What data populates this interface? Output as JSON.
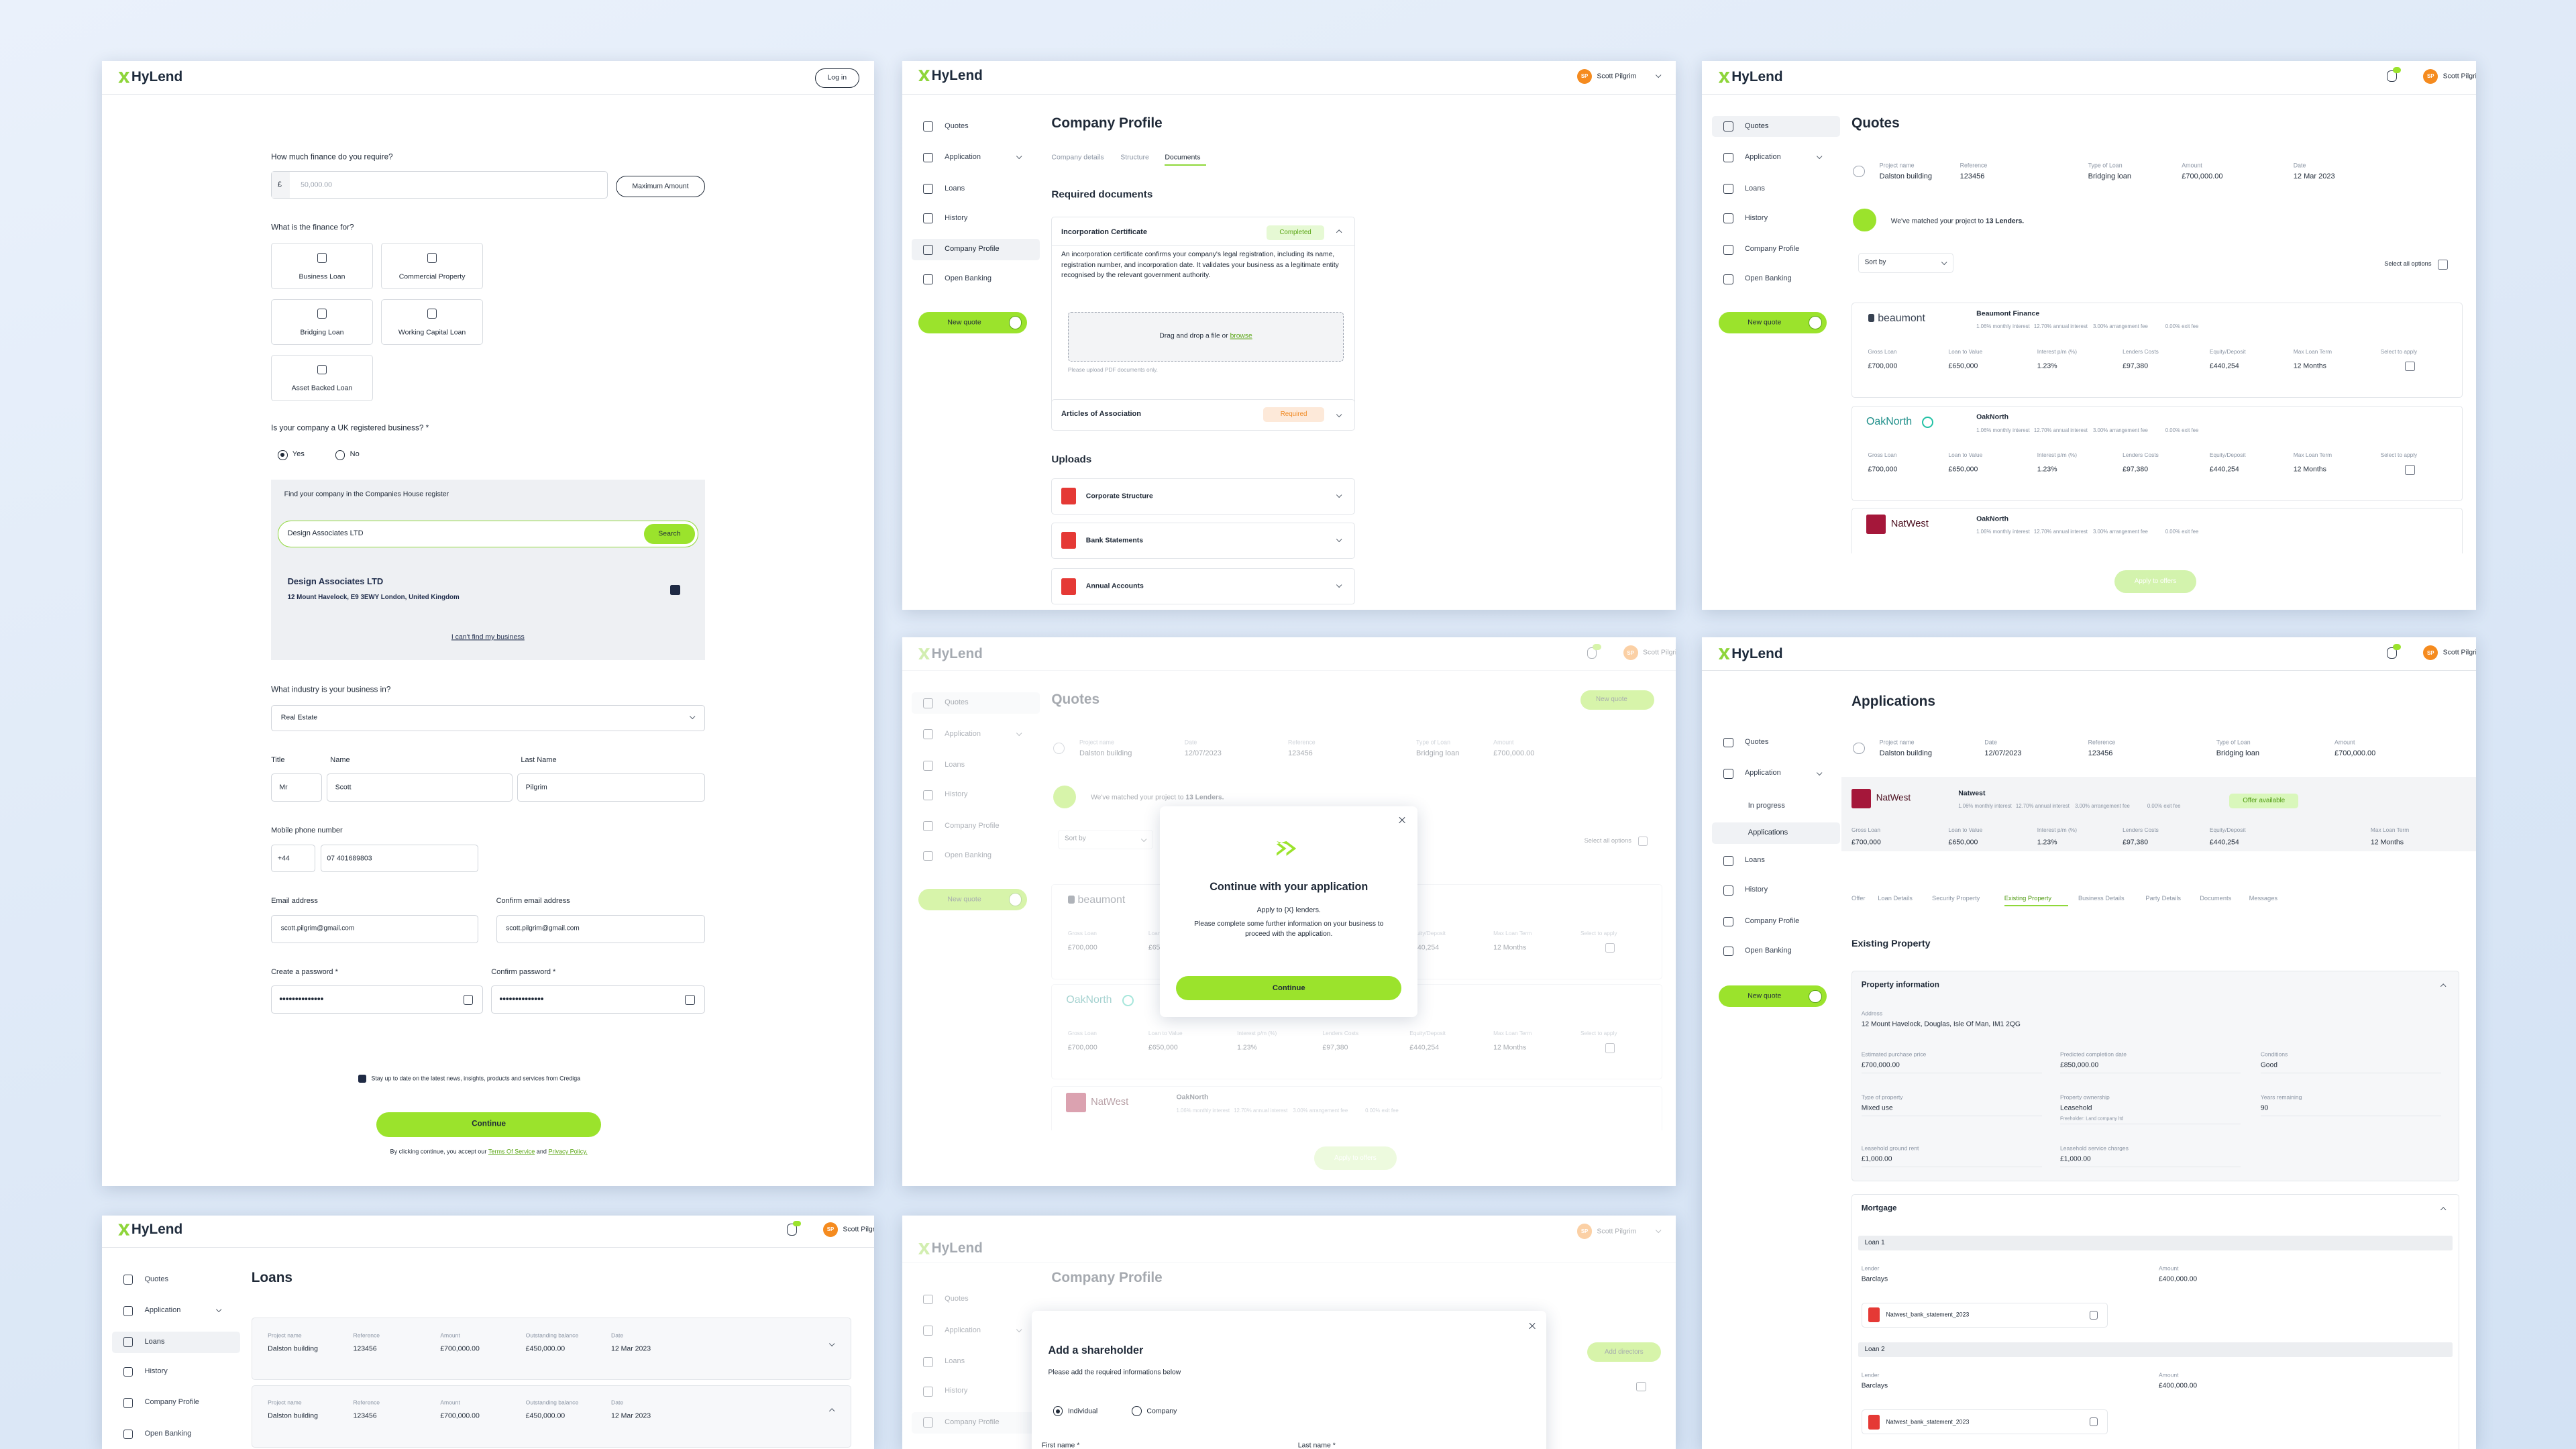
{
  "brand": "HyLend",
  "user": "Scott Pilgrim",
  "user_initials": "SP",
  "new_quote": "New quote",
  "nav": [
    "Quotes",
    "Application",
    "Loans",
    "History",
    "Company Profile",
    "Open Banking"
  ],
  "nav_sub": [
    "In progress",
    "Applications"
  ],
  "finance_form": {
    "login": "Log in",
    "amount_question": "How much finance do you require?",
    "currency": "£",
    "amount_placeholder": "50,000.00",
    "max_amount": "Maximum Amount",
    "purpose_question": "What is the finance for?",
    "purposes": [
      "Business Loan",
      "Commercial Property",
      "Bridging Loan",
      "Working Capital Loan",
      "Asset Backed Loan"
    ],
    "uk_question": "Is your company a UK registered business? *",
    "yes": "Yes",
    "no": "No",
    "register_label": "Find your company in the Companies House register",
    "search_value": "Design Associates LTD",
    "search": "Search",
    "result_name": "Design Associates LTD",
    "result_address": "12 Mount Havelock, E9 3EWY London, United Kingdom",
    "cant_find": "I can't find my business",
    "industry_question": "What industry is your business in?",
    "industry": "Real Estate",
    "title_label": "Title",
    "title": "Mr",
    "name_label": "Name",
    "name": "Scott",
    "last_name_label": "Last Name",
    "last_name": "Pilgrim",
    "phone_label": "Mobile phone number",
    "phone_code": "+44",
    "phone": "07 401689803",
    "email_label": "Email address",
    "email": "scott.pilgrim@gmail.com",
    "confirm_email_label": "Confirm email address",
    "confirm_email": "scott.pilgrim@gmail.com",
    "password_label": "Create a password *",
    "confirm_password_label": "Confirm password *",
    "password": "••••••••••••••",
    "newsletter": "Stay up to date on the latest news, insights, products and services from Crediga",
    "continue": "Continue",
    "terms_prefix": "By clicking continue, you accept our",
    "terms": "Terms Of Service",
    "and": "and",
    "privacy": "Privacy Policy."
  },
  "company_profile": {
    "title": "Company Profile",
    "tabs": [
      "Company details",
      "Structure",
      "Documents"
    ],
    "required_documents": "Required documents",
    "documents": [
      {
        "name": "Incorporation Certificate",
        "status": "Completed",
        "description": "An incorporation certificate confirms your company's legal registration, including its name, registration number, and incorporation date. It validates your business as a legitimate entity recognised by the relevant government authority.",
        "upload": "Drag and drop a file or",
        "browse": "browse",
        "hint": "Please upload PDF documents only."
      },
      {
        "name": "Articles of Association",
        "status": "Required"
      }
    ],
    "uploads_title": "Uploads",
    "uploads": [
      "Corporate Structure",
      "Bank Statements",
      "Annual Accounts"
    ]
  },
  "quotes": {
    "title": "Quotes",
    "project_fields": [
      {
        "label": "Project name",
        "value": "Dalston building"
      },
      {
        "label": "Reference",
        "value": "123456"
      },
      {
        "label": "Type of Loan",
        "value": "Bridging loan"
      },
      {
        "label": "Amount",
        "value": "£700,000.00"
      },
      {
        "label": "Date",
        "value": "12 Mar 2023"
      }
    ],
    "matched_prefix": "We've matched your project to",
    "matched_count": "13 Lenders.",
    "sort": "Sort by",
    "select_all": "Select all options",
    "field_labels": [
      "Gross Loan",
      "Loan to Value",
      "Interest p/m (%)",
      "Lenders Costs",
      "Equity/Deposit",
      "Max Loan Term",
      "Select to apply"
    ],
    "lenders": [
      {
        "logo": "beaumont",
        "name": "Beaumont Finance",
        "terms": [
          "1.06% monthly interest",
          "12.70% annual interest",
          "3.00% arrangement fee",
          "0.00% exit fee"
        ],
        "values": [
          "£700,000",
          "£650,000",
          "1.23%",
          "£97,380",
          "£440,254",
          "12 Months"
        ]
      },
      {
        "logo": "OakNorth",
        "name": "OakNorth",
        "terms": [
          "1.06% monthly interest",
          "12.70% annual interest",
          "3.00% arrangement fee",
          "0.00% exit fee"
        ],
        "values": [
          "£700,000",
          "£650,000",
          "1.23%",
          "£97,380",
          "£440,254",
          "12 Months"
        ]
      },
      {
        "logo": "NatWest",
        "name": "OakNorth",
        "terms": [
          "1.06% monthly interest",
          "12.70% annual interest",
          "3.00% arrangement fee",
          "0.00% exit fee"
        ]
      }
    ],
    "apply": "Apply to offers"
  },
  "continue_modal": {
    "title": "Continue with your application",
    "subtitle": "Apply to {X} lenders.",
    "body": "Please complete some further information on your business to proceed with the application.",
    "button": "Continue"
  },
  "applications": {
    "title": "Applications",
    "project_fields": [
      {
        "label": "Project name",
        "value": "Dalston building"
      },
      {
        "label": "Date",
        "value": "12/07/2023"
      },
      {
        "label": "Reference",
        "value": "123456"
      },
      {
        "label": "Type of Loan",
        "value": "Bridging loan"
      },
      {
        "label": "Amount",
        "value": "£700,000.00"
      }
    ],
    "lender": {
      "logo": "NatWest",
      "name": "Natwest",
      "terms": [
        "1.06% monthly interest",
        "12.70% annual interest",
        "3.00% arrangement fee",
        "0.00% exit fee"
      ],
      "status": "Offer available",
      "values": [
        "£700,000",
        "£650,000",
        "1.23%",
        "£97,380",
        "£440,254",
        "12 Months"
      ]
    },
    "tabs": [
      "Offer",
      "Loan Details",
      "Security Property",
      "Existing Property",
      "Business Details",
      "Party Details",
      "Documents",
      "Messages"
    ],
    "section": "Existing Property",
    "property_title": "Property information",
    "address_label": "Address",
    "address": "12 Mount Havelock, Douglas, Isle Of Man, IM1 2QG",
    "fields": [
      {
        "label": "Estimated purchase price",
        "value": "£700,000.00"
      },
      {
        "label": "Predicted completion date",
        "value": "£850,000.00"
      },
      {
        "label": "Conditions",
        "value": "Good"
      },
      {
        "label": "Type of property",
        "value": "Mixed use"
      },
      {
        "label": "Property ownership",
        "value": "Leasehold",
        "note": "Freeholder: Land company ltd"
      },
      {
        "label": "Years remaining",
        "value": "90"
      },
      {
        "label": "Leasehold ground rent",
        "value": "£1,000.00"
      },
      {
        "label": "Leasehold service charges",
        "value": "£1,000.00"
      }
    ],
    "mortgage_title": "Mortgage",
    "loans": [
      {
        "title": "Loan 1",
        "lender_label": "Lender",
        "lender": "Barclays",
        "amount_label": "Amount",
        "amount": "£400,000.00",
        "file": "Natwest_bank_statement_2023"
      },
      {
        "title": "Loan 2",
        "lender_label": "Lender",
        "lender": "Barclays",
        "amount_label": "Amount",
        "amount": "£400,000.00",
        "file": "Natwest_bank_statement_2023"
      }
    ]
  },
  "loans": {
    "title": "Loans",
    "labels": [
      "Project name",
      "Reference",
      "Amount",
      "Outstanding balance",
      "Date"
    ],
    "rows": [
      [
        "Dalston building",
        "123456",
        "£700,000.00",
        "£450,000.00",
        "12 Mar 2023"
      ],
      [
        "Dalston building",
        "123456",
        "£700,000.00",
        "£450,000.00",
        "12 Mar 2023"
      ]
    ]
  },
  "shareholder": {
    "add_directors": "Add directors",
    "title": "Add a shareholder",
    "subtitle": "Please add the required informations below",
    "options": [
      "Individual",
      "Company"
    ],
    "first_name": "First name *",
    "last_name": "Last name *"
  }
}
